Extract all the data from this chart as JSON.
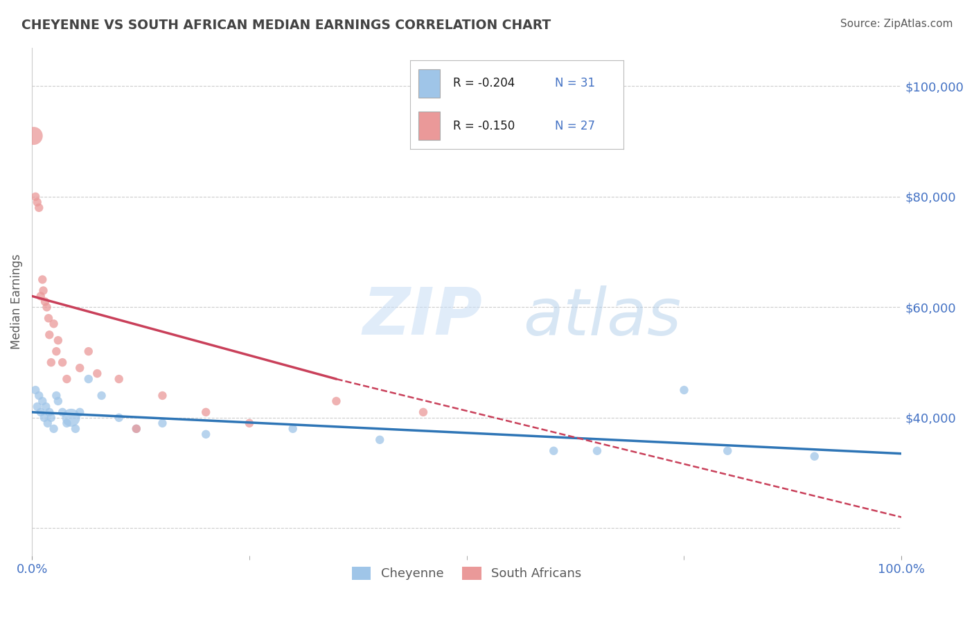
{
  "title": "CHEYENNE VS SOUTH AFRICAN MEDIAN EARNINGS CORRELATION CHART",
  "source": "Source: ZipAtlas.com",
  "ylabel": "Median Earnings",
  "xlim": [
    0.0,
    100.0
  ],
  "ylim": [
    15000,
    107000
  ],
  "legend_r1": "R = -0.204",
  "legend_n1": "N = 31",
  "legend_r2": "R = -0.150",
  "legend_n2": "N = 27",
  "blue_color": "#9fc5e8",
  "pink_color": "#ea9999",
  "blue_scatter": [
    [
      0.4,
      45000
    ],
    [
      0.6,
      42000
    ],
    [
      0.8,
      44000
    ],
    [
      1.0,
      41000
    ],
    [
      1.2,
      43000
    ],
    [
      1.4,
      40000
    ],
    [
      1.6,
      42000
    ],
    [
      1.8,
      39000
    ],
    [
      2.0,
      41000
    ],
    [
      2.2,
      40000
    ],
    [
      2.5,
      38000
    ],
    [
      2.8,
      44000
    ],
    [
      3.0,
      43000
    ],
    [
      3.5,
      41000
    ],
    [
      4.0,
      39000
    ],
    [
      4.5,
      40000
    ],
    [
      5.0,
      38000
    ],
    [
      5.5,
      41000
    ],
    [
      6.5,
      47000
    ],
    [
      8.0,
      44000
    ],
    [
      10.0,
      40000
    ],
    [
      12.0,
      38000
    ],
    [
      15.0,
      39000
    ],
    [
      20.0,
      37000
    ],
    [
      30.0,
      38000
    ],
    [
      40.0,
      36000
    ],
    [
      60.0,
      34000
    ],
    [
      65.0,
      34000
    ],
    [
      75.0,
      45000
    ],
    [
      80.0,
      34000
    ],
    [
      90.0,
      33000
    ]
  ],
  "blue_sizes": [
    80,
    80,
    80,
    80,
    80,
    80,
    80,
    80,
    80,
    80,
    80,
    80,
    80,
    80,
    80,
    350,
    80,
    80,
    80,
    80,
    80,
    80,
    80,
    80,
    80,
    80,
    80,
    80,
    80,
    80,
    80
  ],
  "pink_scatter": [
    [
      0.2,
      91000
    ],
    [
      0.4,
      80000
    ],
    [
      0.6,
      79000
    ],
    [
      0.8,
      78000
    ],
    [
      1.0,
      62000
    ],
    [
      1.2,
      65000
    ],
    [
      1.3,
      63000
    ],
    [
      1.5,
      61000
    ],
    [
      1.7,
      60000
    ],
    [
      1.9,
      58000
    ],
    [
      2.0,
      55000
    ],
    [
      2.2,
      50000
    ],
    [
      2.5,
      57000
    ],
    [
      2.8,
      52000
    ],
    [
      3.0,
      54000
    ],
    [
      3.5,
      50000
    ],
    [
      4.0,
      47000
    ],
    [
      5.5,
      49000
    ],
    [
      6.5,
      52000
    ],
    [
      7.5,
      48000
    ],
    [
      10.0,
      47000
    ],
    [
      12.0,
      38000
    ],
    [
      15.0,
      44000
    ],
    [
      20.0,
      41000
    ],
    [
      25.0,
      39000
    ],
    [
      35.0,
      43000
    ],
    [
      45.0,
      41000
    ]
  ],
  "pink_sizes": [
    80,
    80,
    80,
    80,
    80,
    80,
    80,
    80,
    80,
    80,
    80,
    80,
    80,
    80,
    80,
    80,
    80,
    80,
    80,
    80,
    80,
    80,
    80,
    80,
    80,
    80,
    80
  ],
  "pink_large_idx": 0,
  "blue_line_x": [
    0.0,
    100.0
  ],
  "blue_line_y": [
    41000,
    33500
  ],
  "pink_line_x": [
    0.0,
    35.0
  ],
  "pink_line_y": [
    62000,
    47000
  ],
  "dashed_line_x": [
    35.0,
    100.0
  ],
  "dashed_line_y": [
    47000,
    22000
  ],
  "watermark_zip": "ZIP",
  "watermark_atlas": "atlas",
  "background_color": "#ffffff",
  "grid_color": "#cccccc",
  "title_color": "#434343",
  "axis_label_color": "#595959",
  "tick_color": "#4472c4",
  "source_color": "#595959",
  "legend_text_color": "#1a1a1a",
  "legend_num_color": "#4472c4"
}
